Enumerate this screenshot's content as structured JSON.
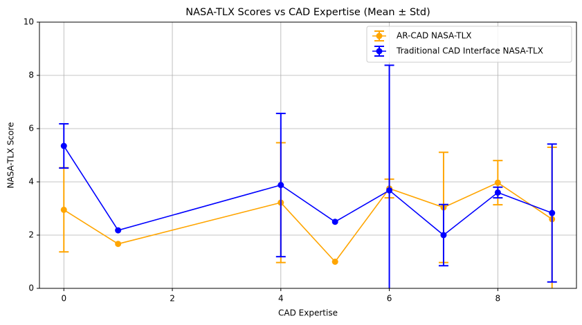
{
  "chart_data": {
    "type": "errorbar_line",
    "title": "NASA-TLX Scores vs CAD Expertise (Mean ± Std)",
    "x_label": "CAD Expertise",
    "y_label": "NASA-TLX Score",
    "xlim": [
      -0.45,
      9.45
    ],
    "ylim": [
      0,
      10
    ],
    "xticks": [
      0,
      2,
      4,
      6,
      8
    ],
    "yticks": [
      0,
      2,
      4,
      6,
      8,
      10
    ],
    "grid": true,
    "legend_position": "upper right",
    "series": [
      {
        "name": "AR-CAD NASA-TLX",
        "color": "orange",
        "x": [
          0,
          1,
          4,
          5,
          6,
          7,
          8,
          9
        ],
        "values": [
          2.95,
          1.67,
          3.22,
          1.0,
          3.75,
          3.04,
          3.97,
          2.6
        ],
        "errors": [
          1.58,
          null,
          2.25,
          null,
          0.35,
          2.07,
          0.83,
          2.7
        ]
      },
      {
        "name": "Traditional CAD Interface NASA-TLX",
        "color": "blue",
        "x": [
          0,
          1,
          4,
          5,
          6,
          7,
          8,
          9
        ],
        "values": [
          5.35,
          2.18,
          3.88,
          2.5,
          3.68,
          2.0,
          3.6,
          2.83
        ],
        "errors": [
          0.83,
          null,
          2.69,
          null,
          4.7,
          1.15,
          0.2,
          2.59
        ]
      }
    ]
  }
}
